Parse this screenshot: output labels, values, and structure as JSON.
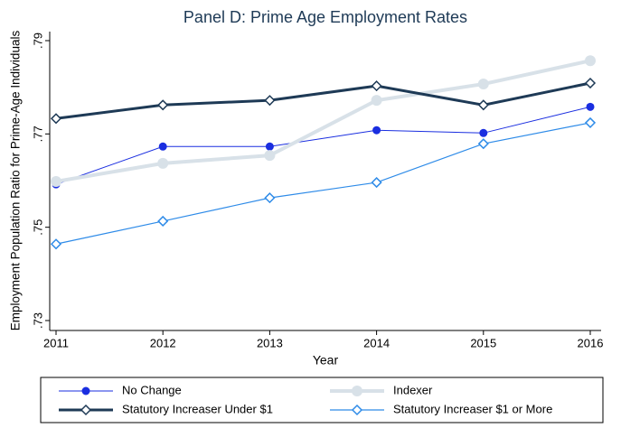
{
  "chart_data": {
    "type": "line",
    "title": "Panel D: Prime Age Employment Rates",
    "x_label": "Year",
    "y_label": "Employment Population Ratio for Prime-Age Individuals",
    "x": [
      2011,
      2012,
      2013,
      2014,
      2015,
      2016
    ],
    "xlim": [
      2011,
      2016
    ],
    "xticks": [
      2011,
      2012,
      2013,
      2014,
      2015,
      2016
    ],
    "ylim": [
      0.73,
      0.79
    ],
    "yticks": [
      {
        "value": 0.73,
        "label": ".73"
      },
      {
        "value": 0.75,
        "label": ".75"
      },
      {
        "value": 0.77,
        "label": ".77"
      },
      {
        "value": 0.79,
        "label": ".79"
      }
    ],
    "grid": false,
    "legend": "bottom",
    "series": [
      {
        "name": "No Change",
        "color": "#1a2ee0",
        "line_width": 1,
        "marker": "circle-filled",
        "values": [
          0.7592,
          0.7673,
          0.7673,
          0.7708,
          0.7702,
          0.7758
        ]
      },
      {
        "name": "Indexer",
        "color": "#d8e1e8",
        "line_width": 4,
        "marker": "circle-filled",
        "values": [
          0.7598,
          0.7637,
          0.7654,
          0.7772,
          0.7807,
          0.7857
        ]
      },
      {
        "name": "Statutory Increaser Under $1",
        "color": "#1e3a56",
        "line_width": 3,
        "marker": "diamond-open",
        "values": [
          0.7733,
          0.7762,
          0.7772,
          0.7803,
          0.7762,
          0.7809
        ]
      },
      {
        "name": "Statutory Increaser $1 or More",
        "color": "#2e8be8",
        "line_width": 1.2,
        "marker": "diamond-open",
        "values": [
          0.7464,
          0.7513,
          0.7563,
          0.7596,
          0.7679,
          0.7724
        ]
      }
    ]
  }
}
